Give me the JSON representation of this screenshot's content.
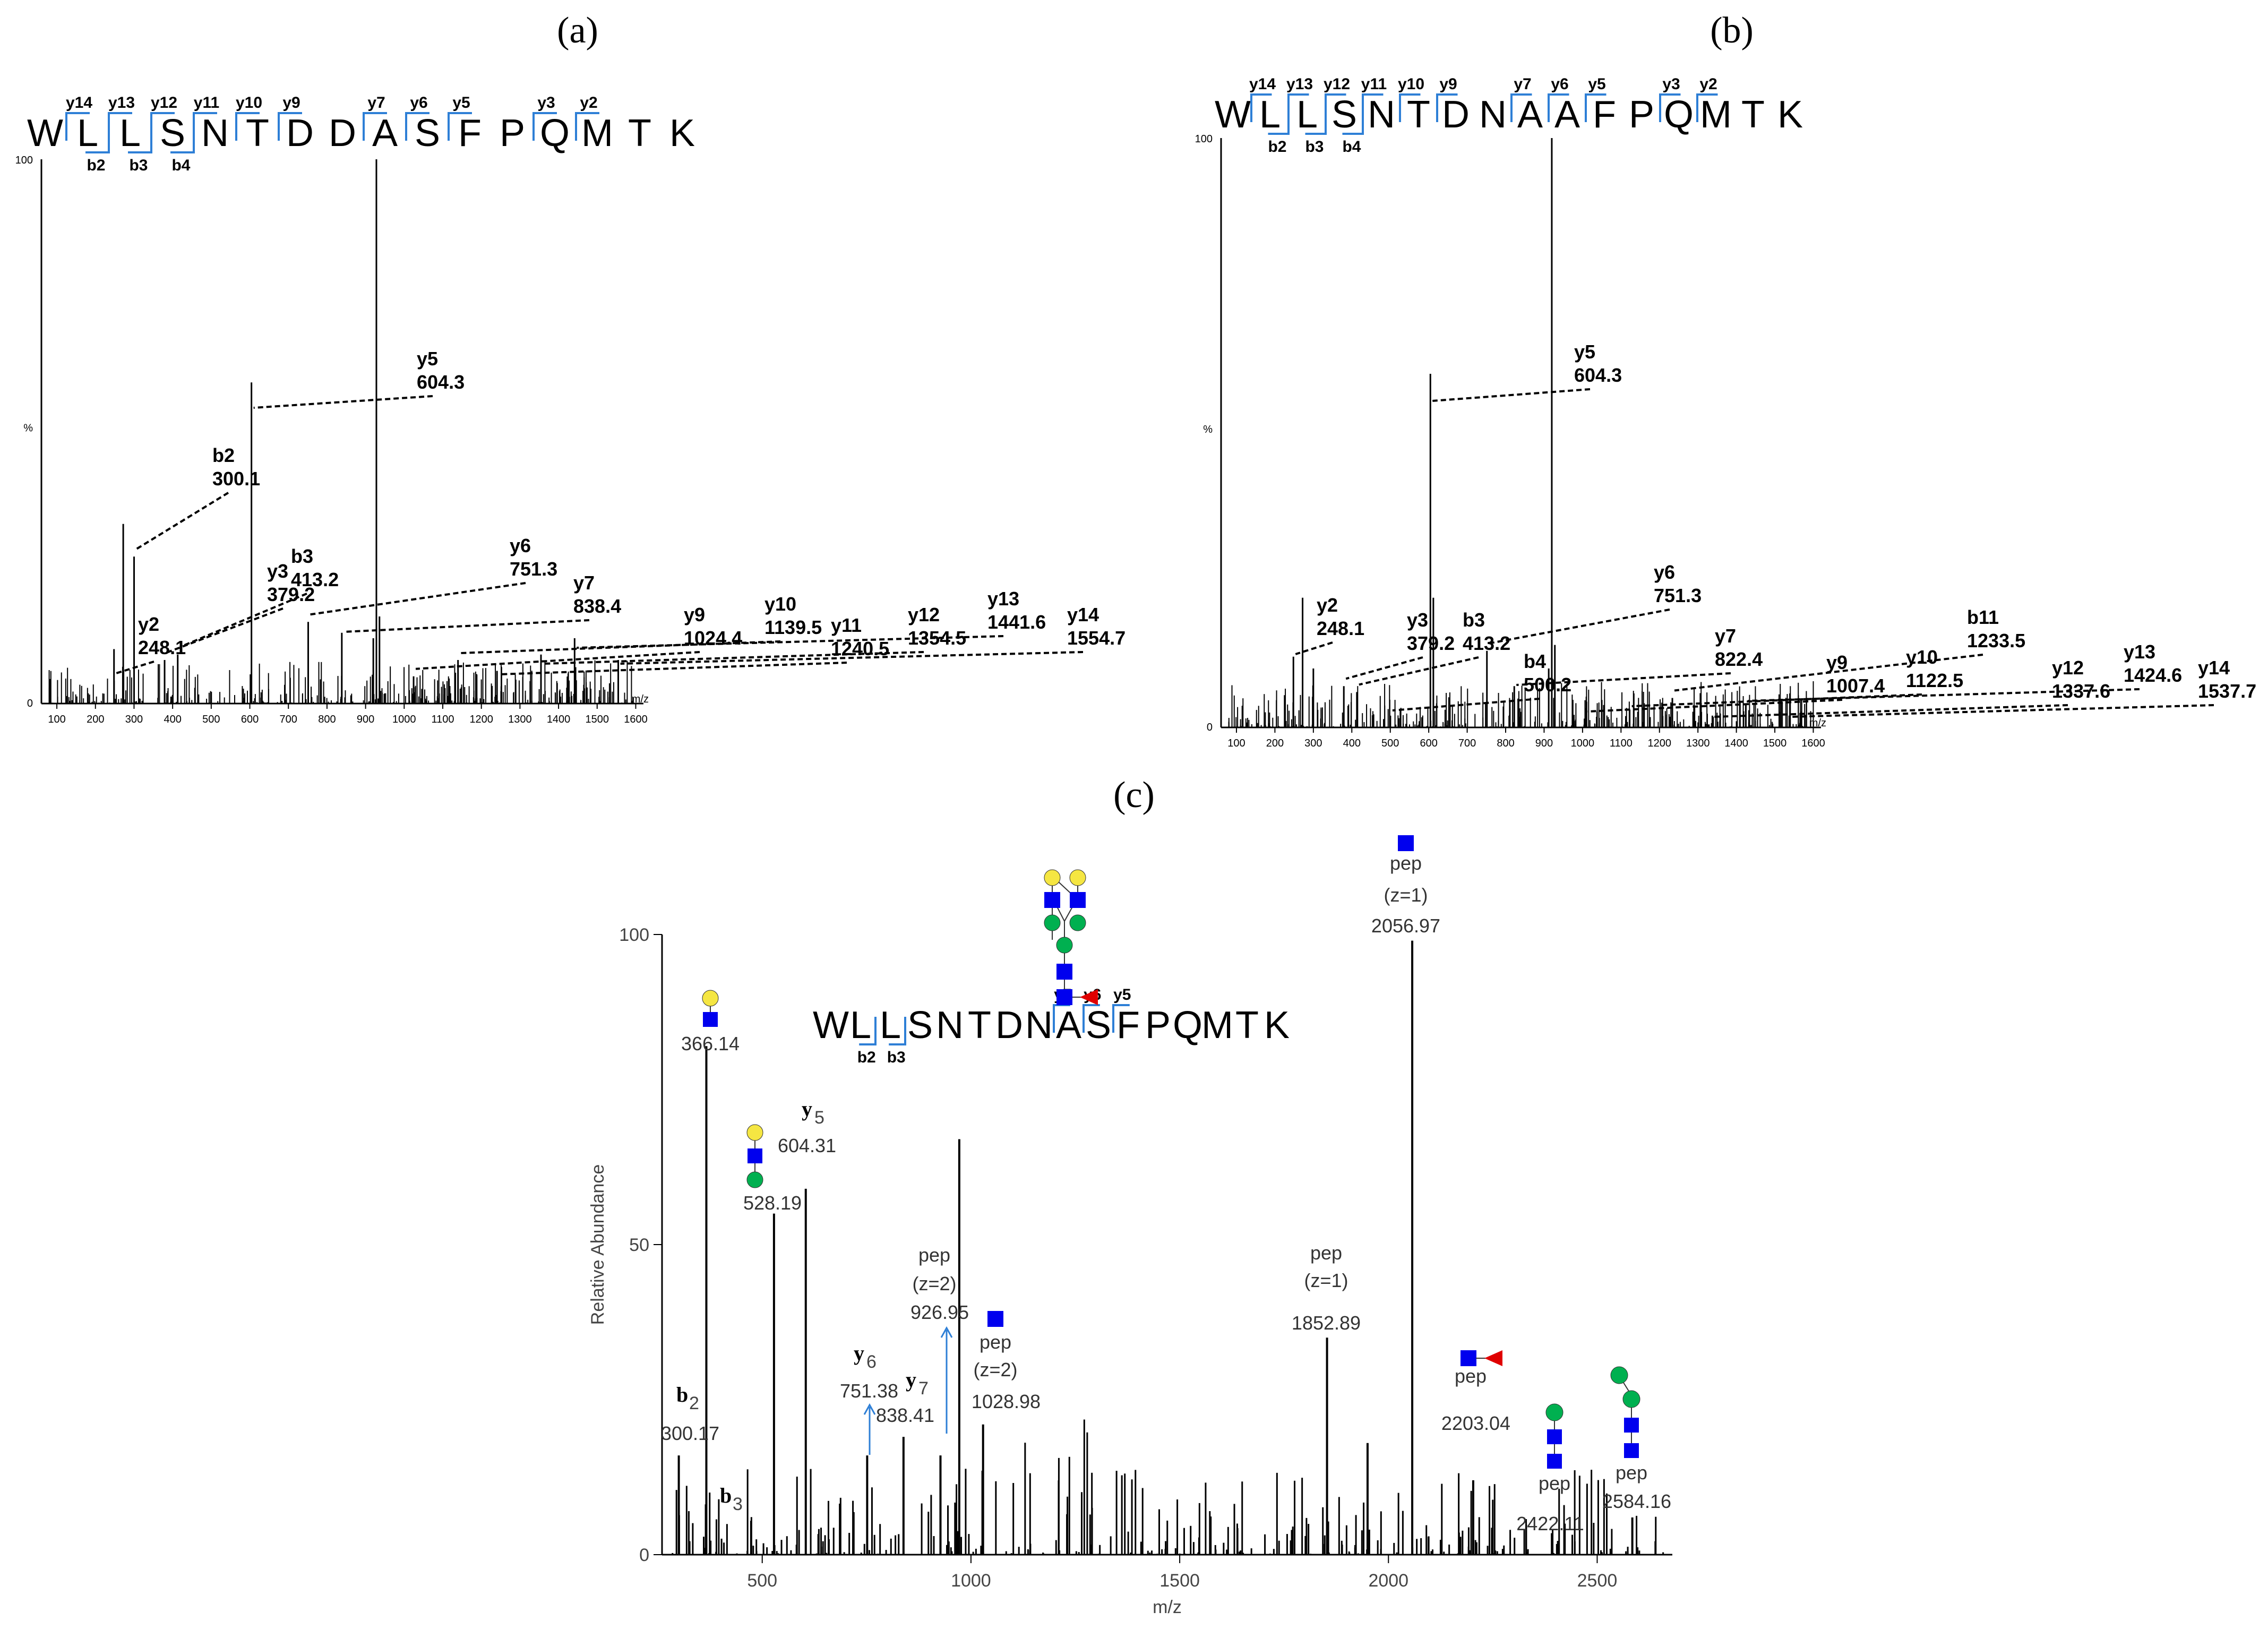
{
  "panels": [
    {
      "label": "(a)",
      "sequence": [
        "W",
        "L",
        "L",
        "S",
        "N",
        "T",
        "D",
        "D",
        "A",
        "S",
        "F",
        "P",
        "Q",
        "M",
        "T",
        "K"
      ],
      "y_ions_above": [
        {
          "after": 1,
          "label": "y14"
        },
        {
          "after": 2,
          "label": "y13"
        },
        {
          "after": 3,
          "label": "y12"
        },
        {
          "after": 4,
          "label": "y11"
        },
        {
          "after": 5,
          "label": "y10"
        },
        {
          "after": 6,
          "label": "y9"
        },
        {
          "after": 8,
          "label": "y7"
        },
        {
          "after": 9,
          "label": "y6"
        },
        {
          "after": 10,
          "label": "y5"
        },
        {
          "after": 12,
          "label": "y3"
        },
        {
          "after": 13,
          "label": "y2"
        }
      ],
      "b_ions_below": [
        {
          "after": 1,
          "label": "b2"
        },
        {
          "after": 2,
          "label": "b3"
        },
        {
          "after": 3,
          "label": "b4"
        }
      ],
      "y_axis": {
        "top_label": "100",
        "mid_label": "%",
        "bottom_label": "0"
      },
      "x_axis": {
        "label": "m/z",
        "ticks": [
          100,
          200,
          300,
          400,
          500,
          600,
          700,
          800,
          900,
          1000,
          1100,
          1200,
          1300,
          1400,
          1500,
          1600
        ],
        "range": [
          60,
          1620
        ]
      }
    },
    {
      "label": "(b)",
      "sequence": [
        "W",
        "L",
        "L",
        "S",
        "N",
        "T",
        "D",
        "N",
        "A",
        "A",
        "F",
        "P",
        "Q",
        "M",
        "T",
        "K"
      ],
      "y_ions_above": [
        {
          "after": 1,
          "label": "y14"
        },
        {
          "after": 2,
          "label": "y13"
        },
        {
          "after": 3,
          "label": "y12"
        },
        {
          "after": 4,
          "label": "y11"
        },
        {
          "after": 5,
          "label": "y10"
        },
        {
          "after": 6,
          "label": "y9"
        },
        {
          "after": 8,
          "label": "y7"
        },
        {
          "after": 9,
          "label": "y6"
        },
        {
          "after": 10,
          "label": "y5"
        },
        {
          "after": 12,
          "label": "y3"
        },
        {
          "after": 13,
          "label": "y2"
        }
      ],
      "b_ions_below": [
        {
          "after": 1,
          "label": "b2"
        },
        {
          "after": 2,
          "label": "b3"
        },
        {
          "after": 3,
          "label": "b4"
        }
      ],
      "y_axis": {
        "top_label": "100",
        "mid_label": "%",
        "bottom_label": "0"
      },
      "x_axis": {
        "label": "m/z",
        "ticks": [
          100,
          200,
          300,
          400,
          500,
          600,
          700,
          800,
          900,
          1000,
          1100,
          1200,
          1300,
          1400,
          1500,
          1600
        ],
        "range": [
          60,
          1620
        ]
      }
    },
    {
      "label": "(c)",
      "sequence": [
        "W",
        "L",
        "L",
        "S",
        "N",
        "T",
        "D",
        "N",
        "A",
        "S",
        "F",
        "P",
        "Q",
        "M",
        "T",
        "K"
      ],
      "y_ions_above": [
        {
          "after": 8,
          "label": "y7"
        },
        {
          "after": 9,
          "label": "y6"
        },
        {
          "after": 10,
          "label": "y5"
        }
      ],
      "b_ions_below": [
        {
          "after": 1,
          "label": "b2"
        },
        {
          "after": 2,
          "label": "b3"
        }
      ],
      "y_axis": {
        "label": "Relative Abundance",
        "ticks": [
          0,
          50,
          100
        ]
      },
      "x_axis": {
        "label": "m/z",
        "ticks": [
          500,
          1000,
          1500,
          2000,
          2500
        ],
        "range": [
          260,
          2680
        ]
      }
    }
  ],
  "chart_data": [
    {
      "type": "bar",
      "title": "",
      "xlabel": "m/z",
      "ylabel": "%",
      "xlim": [
        60,
        1620
      ],
      "ylim": [
        0,
        100
      ],
      "peaks": [
        {
          "mz": 248.1,
          "intensity": 10
        },
        {
          "mz": 272,
          "intensity": 33
        },
        {
          "mz": 300.1,
          "intensity": 27
        },
        {
          "mz": 379.2,
          "intensity": 8
        },
        {
          "mz": 413.2,
          "intensity": 9
        },
        {
          "mz": 604.3,
          "intensity": 59
        },
        {
          "mz": 751.3,
          "intensity": 15
        },
        {
          "mz": 838.4,
          "intensity": 13
        },
        {
          "mz": 920,
          "intensity": 12
        },
        {
          "mz": 928,
          "intensity": 100
        },
        {
          "mz": 936,
          "intensity": 16
        },
        {
          "mz": 1024.4,
          "intensity": 5
        },
        {
          "mz": 1139.5,
          "intensity": 8
        },
        {
          "mz": 1240.5,
          "intensity": 6
        },
        {
          "mz": 1354.5,
          "intensity": 9
        },
        {
          "mz": 1441.6,
          "intensity": 12
        },
        {
          "mz": 1554.7,
          "intensity": 8
        }
      ],
      "annotations": [
        {
          "ion": "y2",
          "mz": "248.1"
        },
        {
          "ion": "b2",
          "mz": "300.1"
        },
        {
          "ion": "y3",
          "mz": "379.2"
        },
        {
          "ion": "b3",
          "mz": "413.2"
        },
        {
          "ion": "y5",
          "mz": "604.3"
        },
        {
          "ion": "y6",
          "mz": "751.3"
        },
        {
          "ion": "y7",
          "mz": "838.4"
        },
        {
          "ion": "y9",
          "mz": "1024.4"
        },
        {
          "ion": "y10",
          "mz": "1139.5"
        },
        {
          "ion": "y11",
          "mz": "1240.5"
        },
        {
          "ion": "y12",
          "mz": "1354.5"
        },
        {
          "ion": "y13",
          "mz": "1441.6"
        },
        {
          "ion": "y14",
          "mz": "1554.7"
        }
      ]
    },
    {
      "type": "bar",
      "title": "",
      "xlabel": "m/z",
      "ylabel": "%",
      "xlim": [
        60,
        1620
      ],
      "ylim": [
        0,
        100
      ],
      "peaks": [
        {
          "mz": 248.1,
          "intensity": 12
        },
        {
          "mz": 272,
          "intensity": 22
        },
        {
          "mz": 300,
          "intensity": 10
        },
        {
          "mz": 379.2,
          "intensity": 7
        },
        {
          "mz": 413.2,
          "intensity": 6
        },
        {
          "mz": 500.2,
          "intensity": 2
        },
        {
          "mz": 604.3,
          "intensity": 60
        },
        {
          "mz": 612,
          "intensity": 22
        },
        {
          "mz": 751.3,
          "intensity": 13
        },
        {
          "mz": 822.4,
          "intensity": 7
        },
        {
          "mz": 912,
          "intensity": 10
        },
        {
          "mz": 920,
          "intensity": 100
        },
        {
          "mz": 928,
          "intensity": 14
        },
        {
          "mz": 1007.4,
          "intensity": 3
        },
        {
          "mz": 1122.5,
          "intensity": 3
        },
        {
          "mz": 1233.5,
          "intensity": 5
        },
        {
          "mz": 1337.6,
          "intensity": 2
        },
        {
          "mz": 1424.6,
          "intensity": 4
        },
        {
          "mz": 1537.7,
          "intensity": 2
        }
      ],
      "annotations": [
        {
          "ion": "y2",
          "mz": "248.1"
        },
        {
          "ion": "y3",
          "mz": "379.2"
        },
        {
          "ion": "b3",
          "mz": "413.2"
        },
        {
          "ion": "b4",
          "mz": "500.2"
        },
        {
          "ion": "y5",
          "mz": "604.3"
        },
        {
          "ion": "y6",
          "mz": "751.3"
        },
        {
          "ion": "y7",
          "mz": "822.4"
        },
        {
          "ion": "y9",
          "mz": "1007.4"
        },
        {
          "ion": "y10",
          "mz": "1122.5"
        },
        {
          "ion": "b11",
          "mz": "1233.5"
        },
        {
          "ion": "y12",
          "mz": "1337.6"
        },
        {
          "ion": "y13",
          "mz": "1424.6"
        },
        {
          "ion": "y14",
          "mz": "1537.7"
        }
      ]
    },
    {
      "type": "bar",
      "title": "",
      "xlabel": "m/z",
      "ylabel": "Relative Abundance",
      "xlim": [
        260,
        2680
      ],
      "ylim": [
        0,
        100
      ],
      "peaks": [
        {
          "mz": 300.17,
          "intensity": 16
        },
        {
          "mz": 366.14,
          "intensity": 82
        },
        {
          "mz": 528.19,
          "intensity": 55
        },
        {
          "mz": 604.31,
          "intensity": 59
        },
        {
          "mz": 751.38,
          "intensity": 16
        },
        {
          "mz": 838.41,
          "intensity": 19
        },
        {
          "mz": 926.95,
          "intensity": 16
        },
        {
          "mz": 972,
          "intensity": 67
        },
        {
          "mz": 1028.98,
          "intensity": 21
        },
        {
          "mz": 1852.89,
          "intensity": 35
        },
        {
          "mz": 1950,
          "intensity": 18
        },
        {
          "mz": 2056.97,
          "intensity": 99
        },
        {
          "mz": 2203.04,
          "intensity": 12
        },
        {
          "mz": 2422.11,
          "intensity": 5
        },
        {
          "mz": 2584.16,
          "intensity": 6
        }
      ],
      "annotations": [
        {
          "ion": "b2",
          "mz": "300.17"
        },
        {
          "ion": "",
          "mz": "366.14"
        },
        {
          "ion": "",
          "mz": "528.19"
        },
        {
          "ion": "y5",
          "mz": "604.31"
        },
        {
          "ion": "y6",
          "mz": "751.38"
        },
        {
          "ion": "y7",
          "mz": "838.41"
        },
        {
          "ion": "pep (z=2)",
          "mz": "926.95"
        },
        {
          "ion": "pep (z=2)",
          "mz": "1028.98"
        },
        {
          "ion": "pep (z=1)",
          "mz": "1852.89"
        },
        {
          "ion": "pep (z=1)",
          "mz": "2056.97"
        },
        {
          "ion": "pep",
          "mz": "2203.04"
        },
        {
          "ion": "pep",
          "mz": "2422.11"
        },
        {
          "ion": "pep",
          "mz": "2584.16"
        },
        {
          "ion": "b3",
          "mz": ""
        }
      ],
      "colors": {
        "GlcNAc": "#0000ee",
        "Gal": "#f5e642",
        "Man": "#00b050",
        "Fuc": "#e00000",
        "link": "#2e7fd6"
      }
    }
  ]
}
